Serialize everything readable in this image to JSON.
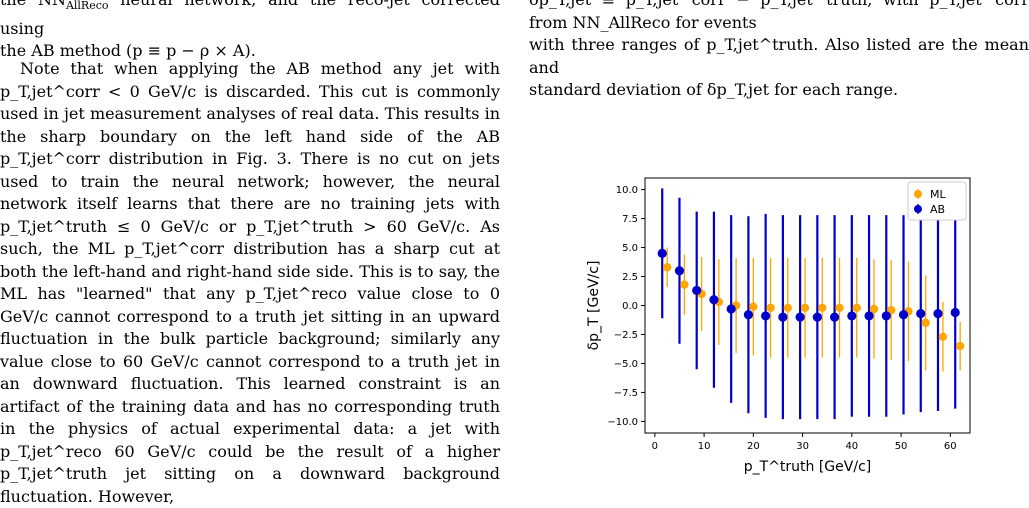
{
  "left_column": {
    "fragment_line1": "the NN",
    "fragment_line1_sub": "AllReco",
    "fragment_line1_rest": " neural network, and the reco-jet corrected using",
    "fragment_line2": "the AB method (p",
    "fragment_line2_rest": " ≡ p",
    "fragment_line2_end": " − ρ × A).",
    "paragraph": "Note that when applying the AB method any jet with p_T,jet^corr < 0 GeV/c is discarded. This cut is commonly used in jet measurement analyses of real data. This results in the sharp boundary on the left hand side of the AB p_T,jet^corr distribution in Fig. 3. There is no cut on jets used to train the neural network; however, the neural network itself learns that there are no training jets with p_T,jet^truth ≤ 0 GeV/c or p_T,jet^truth > 60 GeV/c. As such, the ML p_T,jet^corr distribution has a sharp cut at both the left-hand and right-hand side side. This is to say, the ML has \"learned\" that any p_T,jet^reco value close to 0 GeV/c cannot correspond to a truth jet sitting in an upward fluctuation in the bulk particle background; similarly any value close to 60 GeV/c cannot correspond to a truth jet in an downward fluctuation. This learned constraint is an artifact of the training data and has no corresponding truth in the physics of actual experimental data: a jet with p_T,jet^reco 60 GeV/c could be the result of a higher p_T,jet^truth jet sitting on a downward background fluctuation. However,"
  },
  "right_column": {
    "caption_line1": "δp_T,jet ≡ p_T,jet^corr − p_T,jet^truth, with p_T,jet^corr from NN_AllReco for events",
    "caption_line2": "with three ranges of p_T,jet^truth. Also listed are the mean and",
    "caption_line3": "standard deviation of δp_T,jet for each range."
  },
  "chart_data": {
    "type": "scatter",
    "xlabel": "p_T^truth [GeV/c]",
    "ylabel": "δp_T [GeV/c]",
    "xlim": [
      -2,
      64
    ],
    "ylim": [
      -11,
      11
    ],
    "xticks": [
      0,
      10,
      20,
      30,
      40,
      50,
      60
    ],
    "yticks": [
      10.0,
      7.5,
      5.0,
      2.5,
      0.0,
      -2.5,
      -5.0,
      -7.5,
      -10.0
    ],
    "ytick_labels": [
      "10.0",
      "7.5",
      "5.0",
      "2.5",
      "0.0",
      "−2.5",
      "−5.0",
      "−7.5",
      "−10.0"
    ],
    "legend_position": "top-right",
    "series": [
      {
        "name": "ML",
        "color": "#FFA500",
        "x": [
          2.5,
          6,
          9.5,
          13,
          16.5,
          20,
          23.5,
          27,
          30.5,
          34,
          37.5,
          41,
          44.5,
          48,
          51.5,
          55,
          58.5,
          62
        ],
        "y": [
          3.3,
          1.8,
          1.0,
          0.3,
          0.0,
          -0.1,
          -0.2,
          -0.2,
          -0.2,
          -0.2,
          -0.2,
          -0.2,
          -0.3,
          -0.4,
          -0.5,
          -1.5,
          -2.7,
          -3.5
        ],
        "err": [
          1.7,
          2.6,
          3.2,
          3.7,
          4.1,
          4.2,
          4.3,
          4.3,
          4.3,
          4.3,
          4.3,
          4.3,
          4.3,
          4.3,
          4.3,
          4.1,
          3.0,
          2.1
        ]
      },
      {
        "name": "AB",
        "color": "#0000CC",
        "x": [
          1.5,
          5,
          8.5,
          12,
          15.5,
          19,
          22.5,
          26,
          29.5,
          33,
          36.5,
          40,
          43.5,
          47,
          50.5,
          54,
          57.5,
          61
        ],
        "y": [
          4.5,
          3.0,
          1.3,
          0.5,
          -0.3,
          -0.8,
          -0.9,
          -1.0,
          -1.0,
          -1.0,
          -1.0,
          -0.9,
          -0.9,
          -0.9,
          -0.8,
          -0.7,
          -0.7,
          -0.6
        ],
        "err": [
          5.6,
          6.3,
          6.8,
          7.6,
          8.1,
          8.5,
          8.8,
          8.8,
          8.8,
          8.8,
          8.8,
          8.7,
          8.7,
          8.7,
          8.6,
          8.5,
          8.4,
          8.3
        ]
      }
    ]
  }
}
